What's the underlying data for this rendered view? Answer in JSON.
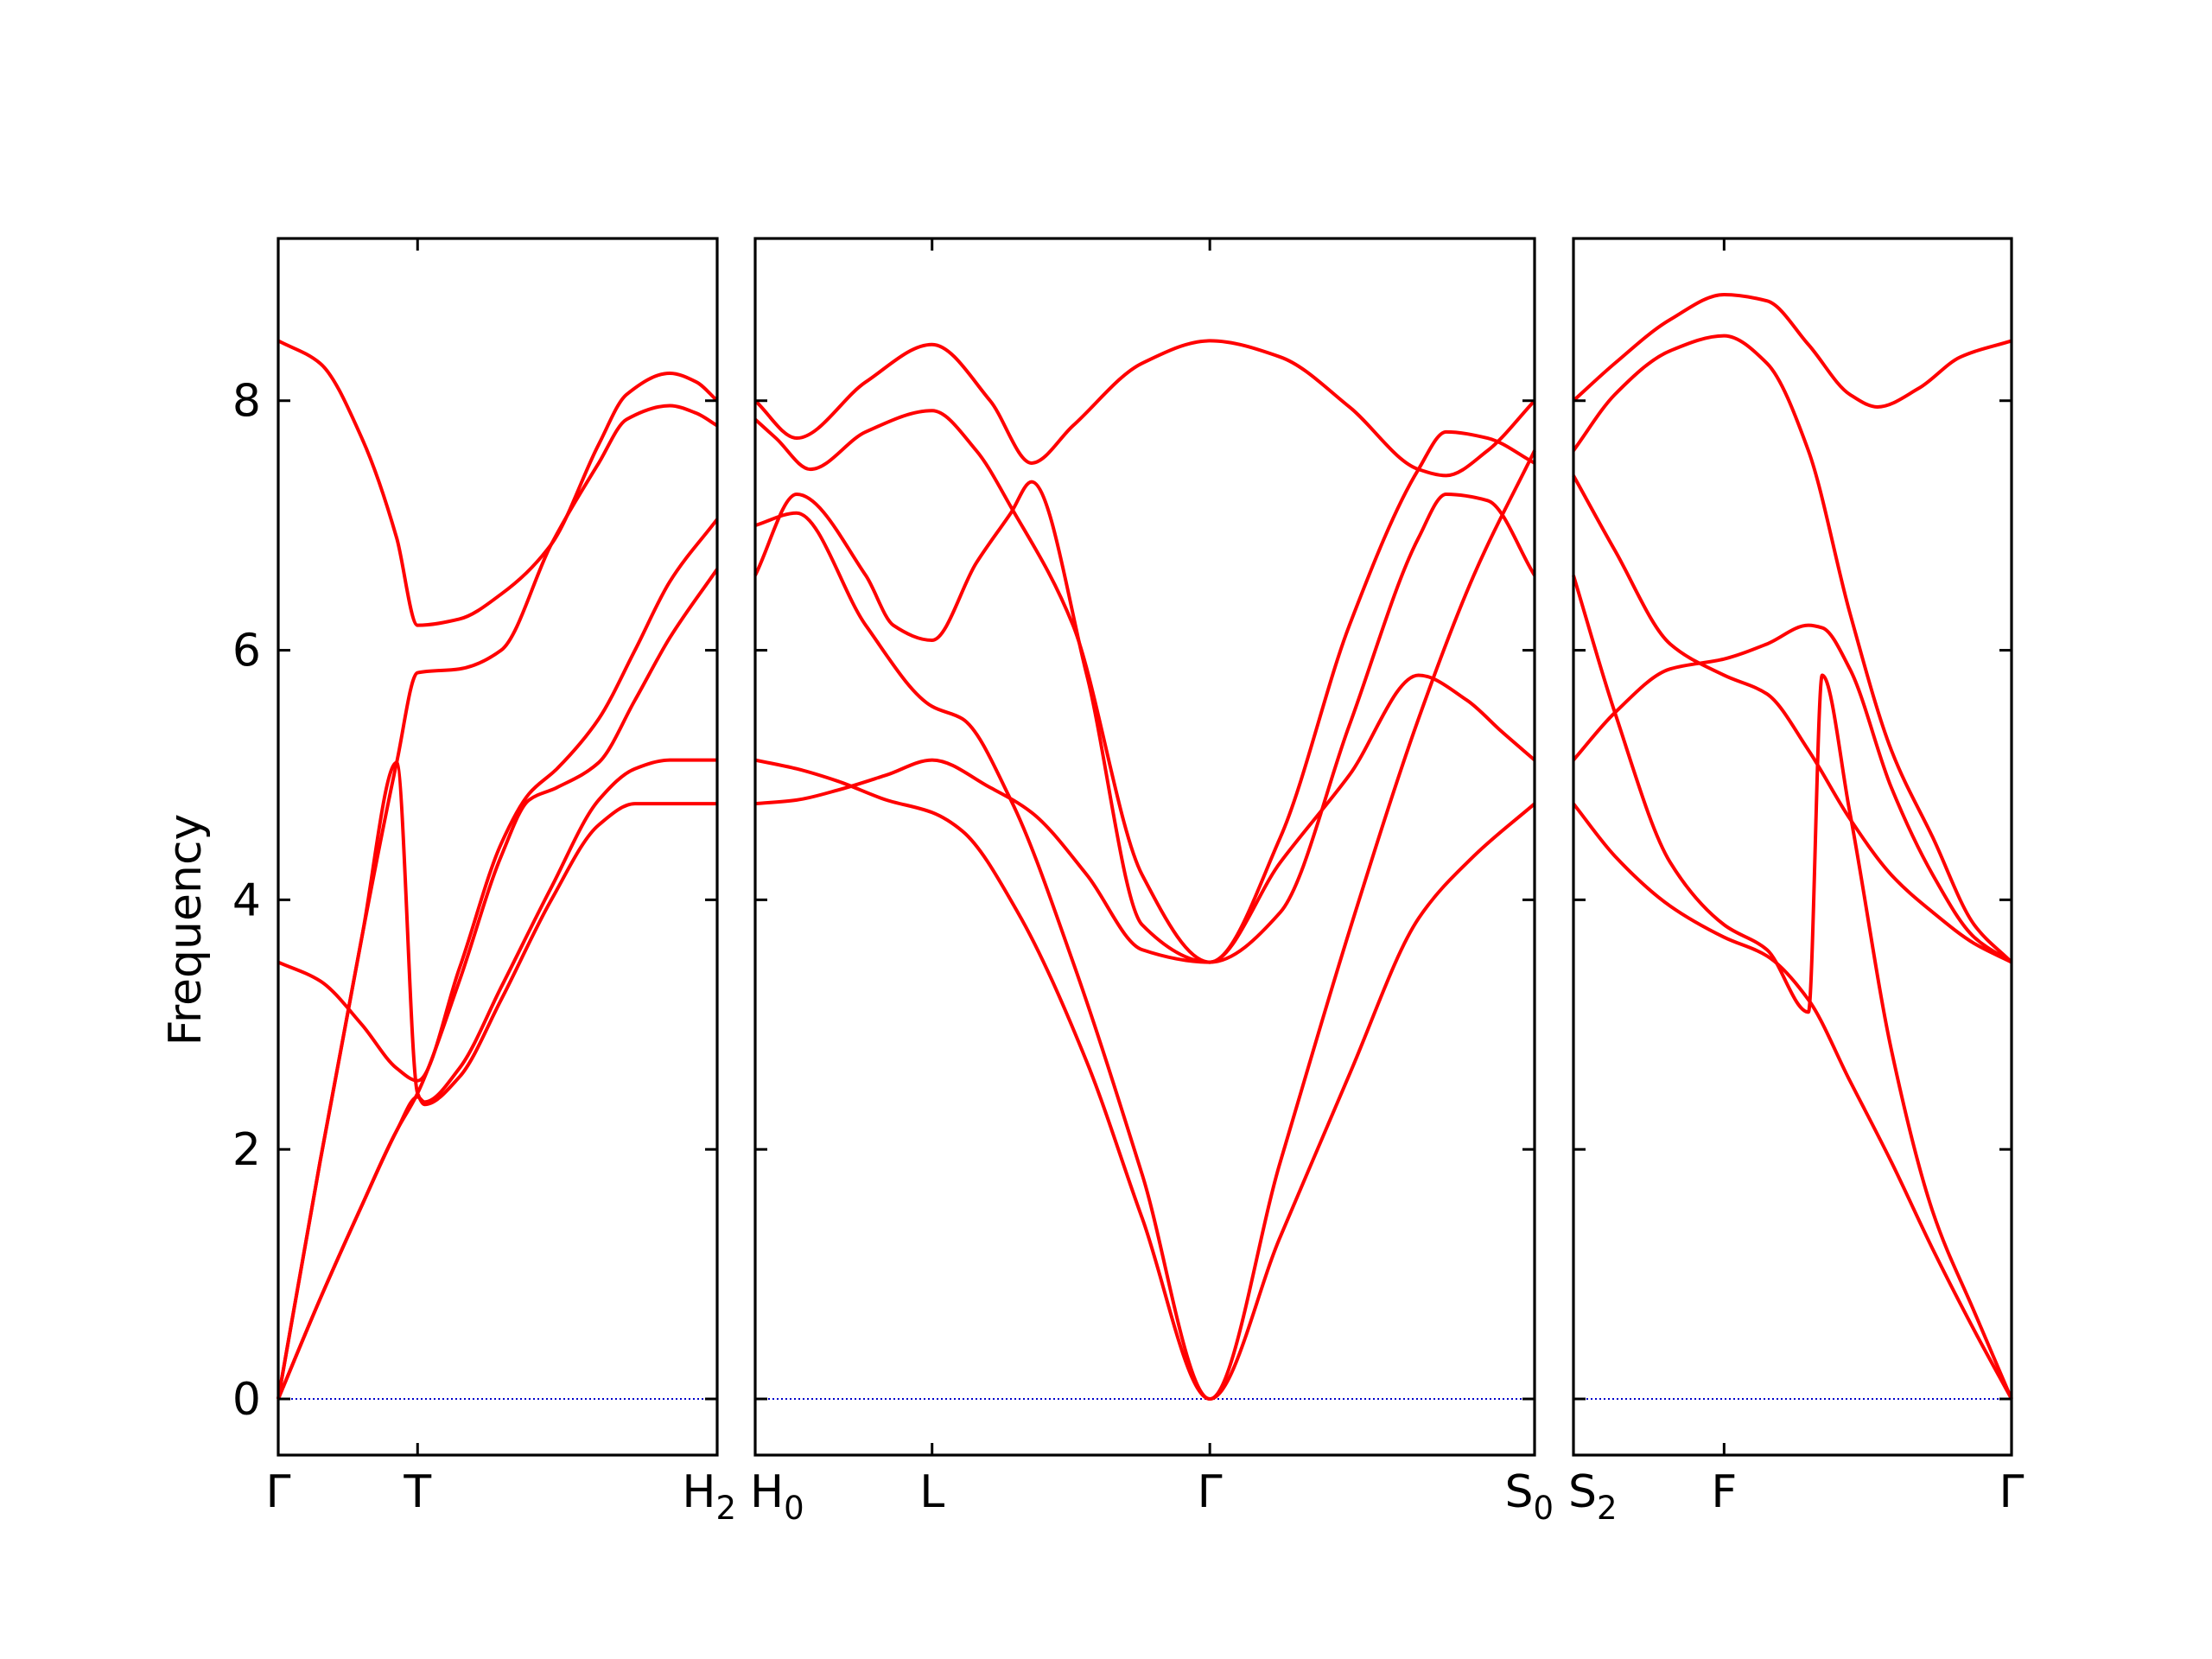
{
  "chart_data": [
    {
      "type": "line",
      "ylabel": "Frequency",
      "ylim": [
        -0.45,
        9.3
      ],
      "yticks": [
        0,
        2,
        4,
        6,
        8
      ],
      "xticks": [
        {
          "label": "Γ",
          "x": 0
        },
        {
          "label": "T",
          "x": 1
        },
        {
          "label": "H",
          "sub": "2",
          "x": 3.15
        }
      ],
      "xlim": [
        0,
        3.15
      ],
      "colors": {
        "bands": "#ff0000",
        "zero": "#0000cc"
      },
      "series": [
        {
          "x": [
            0,
            0.3,
            0.6,
            0.85,
            1.0,
            1.3,
            1.6,
            1.96,
            2.3,
            2.5,
            2.81,
            3.0,
            3.15
          ],
          "values": [
            8.48,
            8.3,
            7.7,
            6.9,
            6.2,
            6.25,
            6.45,
            6.85,
            7.65,
            8.05,
            8.22,
            8.15,
            8.0
          ]
        },
        {
          "x": [
            0,
            0.3,
            0.6,
            0.85,
            1.0,
            1.3,
            1.6,
            1.96,
            2.3,
            2.5,
            2.81,
            3.0,
            3.15
          ],
          "values": [
            0,
            1.9,
            3.7,
            5.1,
            5.82,
            5.85,
            6.0,
            6.85,
            7.5,
            7.85,
            7.96,
            7.9,
            7.8
          ]
        },
        {
          "x": [
            0,
            0.3,
            0.6,
            0.85,
            1.0,
            1.3,
            1.6,
            1.8,
            2.0,
            2.3,
            2.56,
            2.81,
            3.15
          ],
          "values": [
            3.5,
            3.35,
            3.0,
            2.65,
            2.55,
            3.45,
            4.45,
            4.85,
            5.05,
            5.45,
            6.0,
            6.55,
            7.05
          ]
        },
        {
          "x": [
            0,
            0.3,
            0.6,
            0.85,
            1.0,
            1.3,
            1.6,
            1.8,
            2.0,
            2.3,
            2.56,
            2.81,
            3.15
          ],
          "values": [
            0,
            0.8,
            1.55,
            2.15,
            2.45,
            3.35,
            4.35,
            4.8,
            4.9,
            5.1,
            5.6,
            6.1,
            6.65
          ]
        },
        {
          "x": [
            0,
            0.3,
            0.6,
            0.85,
            1.0,
            1.05,
            1.3,
            1.6,
            1.96,
            2.3,
            2.56,
            2.81,
            3.15
          ],
          "values": [
            0,
            0.8,
            1.55,
            2.15,
            2.42,
            2.38,
            2.65,
            3.3,
            4.1,
            4.8,
            5.05,
            5.12,
            5.12
          ]
        },
        {
          "x": [
            0,
            0.3,
            0.6,
            0.85,
            1.0,
            1.05,
            1.3,
            1.6,
            1.96,
            2.3,
            2.56,
            2.81,
            3.15
          ],
          "values": [
            0,
            1.9,
            3.7,
            5.1,
            2.45,
            2.36,
            2.58,
            3.2,
            4.0,
            4.6,
            4.77,
            4.77,
            4.77
          ]
        }
      ]
    },
    {
      "type": "line",
      "ylim": [
        -0.45,
        9.3
      ],
      "yticks": [
        0,
        2,
        4,
        6,
        8
      ],
      "xticks": [
        {
          "label": "H",
          "sub": "0",
          "x": 0
        },
        {
          "label": "L",
          "x": 1.28
        },
        {
          "label": "Γ",
          "x": 3.29
        },
        {
          "label": "S",
          "sub": "0",
          "x": 5.64
        }
      ],
      "xlim": [
        0,
        5.64
      ],
      "colors": {
        "bands": "#ff0000",
        "zero": "#0000cc"
      },
      "series": [
        {
          "x": [
            0,
            0.3,
            0.8,
            1.28,
            1.7,
            2.0,
            2.3,
            2.8,
            3.29,
            3.8,
            4.3,
            4.8,
            5.0,
            5.3,
            5.64
          ],
          "values": [
            8.0,
            7.7,
            8.15,
            8.45,
            8.0,
            7.5,
            7.8,
            8.3,
            8.48,
            8.35,
            7.95,
            7.45,
            7.4,
            7.6,
            8.0
          ]
        },
        {
          "x": [
            0,
            0.15,
            0.4,
            0.8,
            1.28,
            1.6,
            1.85,
            2.3,
            2.8,
            3.29,
            3.8,
            4.3,
            4.8,
            5.0,
            5.3,
            5.64
          ],
          "values": [
            7.85,
            7.7,
            7.45,
            7.75,
            7.92,
            7.6,
            7.15,
            6.2,
            4.2,
            3.5,
            4.5,
            6.2,
            7.45,
            7.75,
            7.7,
            7.5
          ]
        },
        {
          "x": [
            0,
            0.3,
            0.8,
            1.0,
            1.28,
            1.6,
            1.85,
            2.0,
            2.4,
            2.8,
            3.29,
            3.8,
            4.3,
            4.8,
            5.0,
            5.3,
            5.64
          ],
          "values": [
            6.6,
            7.25,
            6.6,
            6.2,
            6.08,
            6.7,
            7.1,
            7.35,
            5.8,
            3.8,
            3.5,
            3.9,
            5.4,
            6.9,
            7.25,
            7.2,
            6.6
          ]
        },
        {
          "x": [
            0,
            0.3,
            0.8,
            1.28,
            1.5,
            1.85,
            2.3,
            2.8,
            3.29,
            3.8,
            4.3,
            4.8,
            5.2,
            5.64
          ],
          "values": [
            7.0,
            7.1,
            6.2,
            5.55,
            5.45,
            4.8,
            3.5,
            1.8,
            0.0,
            1.9,
            3.75,
            5.45,
            6.6,
            7.6
          ]
        },
        {
          "x": [
            0,
            0.3,
            0.6,
            0.95,
            1.28,
            1.7,
            2.0,
            2.4,
            2.8,
            3.29,
            3.8,
            4.3,
            4.8,
            5.15,
            5.4,
            5.64
          ],
          "values": [
            4.77,
            4.8,
            4.88,
            5.0,
            5.12,
            4.9,
            4.7,
            4.2,
            3.6,
            3.5,
            4.3,
            5.0,
            5.8,
            5.6,
            5.35,
            5.12
          ]
        },
        {
          "x": [
            0,
            0.3,
            0.6,
            0.95,
            1.28,
            1.5,
            1.9,
            2.4,
            2.8,
            3.29,
            3.8,
            4.3,
            4.8,
            5.2,
            5.64
          ],
          "values": [
            5.12,
            5.05,
            4.95,
            4.8,
            4.7,
            4.55,
            3.9,
            2.7,
            1.45,
            0.0,
            1.3,
            2.6,
            3.85,
            4.35,
            4.77
          ]
        }
      ]
    },
    {
      "type": "line",
      "ylim": [
        -0.45,
        9.3
      ],
      "yticks": [
        0,
        2,
        4,
        6,
        8
      ],
      "xticks": [
        {
          "label": "S",
          "sub": "2",
          "x": 0
        },
        {
          "label": "F",
          "x": 1.09
        },
        {
          "label": "Γ",
          "x": 3.17
        }
      ],
      "xlim": [
        0,
        3.17
      ],
      "colors": {
        "bands": "#ff0000",
        "zero": "#0000cc"
      },
      "series": [
        {
          "x": [
            0,
            0.3,
            0.7,
            1.09,
            1.4,
            1.7,
            2.0,
            2.2,
            2.5,
            2.8,
            3.17
          ],
          "values": [
            8.0,
            8.3,
            8.65,
            8.85,
            8.8,
            8.45,
            8.05,
            7.95,
            8.1,
            8.35,
            8.48
          ]
        },
        {
          "x": [
            0,
            0.3,
            0.7,
            1.09,
            1.4,
            1.7,
            2.0,
            2.3,
            2.6,
            2.9,
            3.17
          ],
          "values": [
            7.6,
            8.05,
            8.4,
            8.52,
            8.3,
            7.6,
            6.3,
            5.2,
            4.5,
            3.8,
            3.5
          ]
        },
        {
          "x": [
            0,
            0.3,
            0.7,
            1.09,
            1.4,
            1.7,
            1.8,
            2.0,
            2.3,
            2.6,
            2.9,
            3.17
          ],
          "values": [
            5.12,
            5.5,
            5.85,
            5.93,
            6.05,
            6.2,
            6.18,
            5.85,
            4.9,
            4.2,
            3.7,
            3.5
          ]
        },
        {
          "x": [
            0,
            0.3,
            0.7,
            1.09,
            1.4,
            1.7,
            2.0,
            2.3,
            2.6,
            2.9,
            3.17
          ],
          "values": [
            7.4,
            6.8,
            6.05,
            5.8,
            5.65,
            5.2,
            4.65,
            4.2,
            3.9,
            3.65,
            3.5
          ]
        },
        {
          "x": [
            0,
            0.3,
            0.7,
            1.09,
            1.4,
            1.7,
            1.8,
            2.0,
            2.3,
            2.6,
            2.9,
            3.17
          ],
          "values": [
            6.6,
            5.5,
            4.3,
            3.8,
            3.6,
            3.1,
            5.8,
            4.7,
            2.8,
            1.5,
            0.7,
            0.0
          ]
        },
        {
          "x": [
            0,
            0.3,
            0.7,
            1.09,
            1.4,
            1.7,
            2.0,
            2.3,
            2.6,
            2.9,
            3.17
          ],
          "values": [
            4.77,
            4.35,
            3.95,
            3.7,
            3.55,
            3.2,
            2.55,
            1.9,
            1.2,
            0.55,
            0.0
          ]
        }
      ]
    }
  ]
}
